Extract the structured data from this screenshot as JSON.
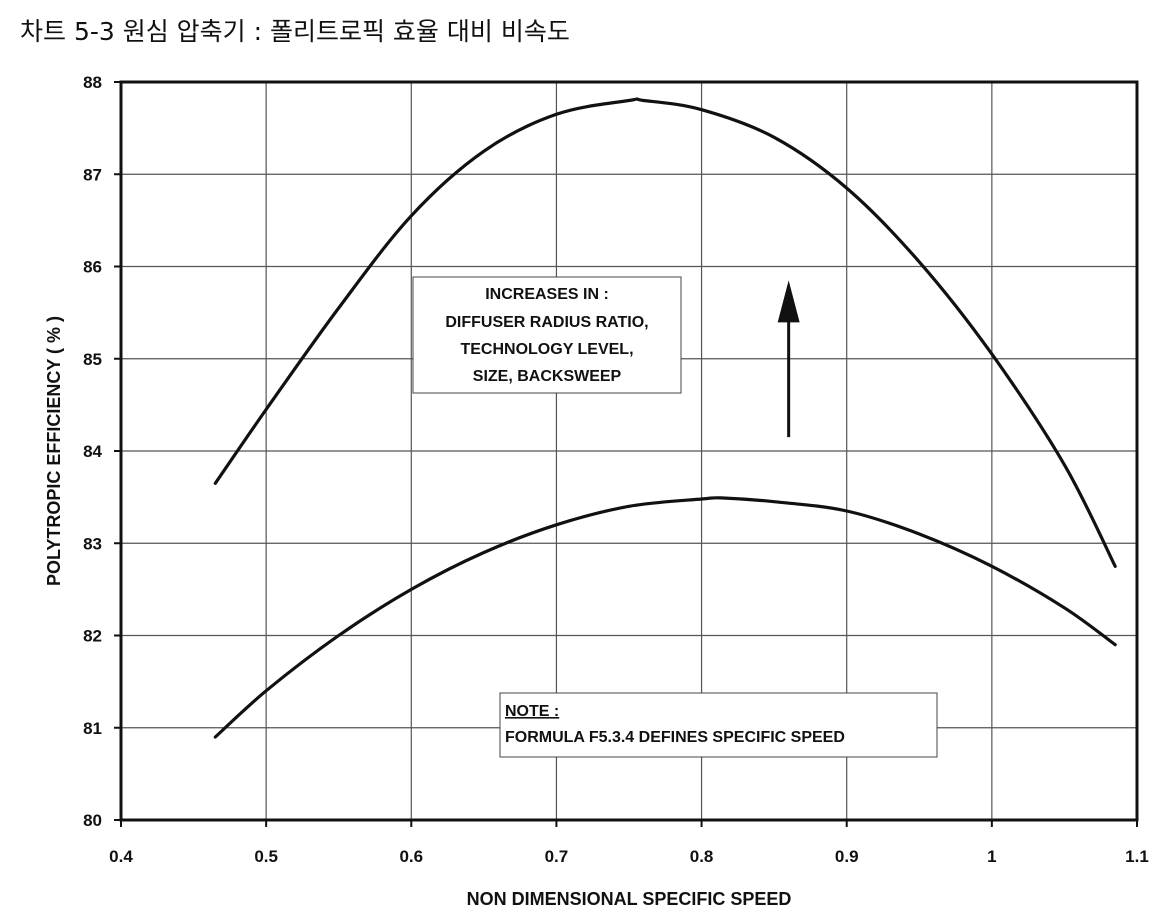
{
  "title": "차트 5-3 원심 압축기 : 폴리트로픽 효율 대비 비속도",
  "colors": {
    "ink": "#111111",
    "grid": "#555555",
    "background": "#ffffff"
  },
  "annotations": {
    "increases_box": [
      "INCREASES IN :",
      "DIFFUSER RADIUS RATIO,",
      "TECHNOLOGY LEVEL,",
      "SIZE, BACKSWEEP"
    ],
    "note_heading": "NOTE :",
    "note_body": "FORMULA F5.3.4 DEFINES SPECIFIC SPEED"
  },
  "chart_data": {
    "type": "line",
    "xlabel": "NON DIMENSIONAL SPECIFIC SPEED",
    "ylabel": "POLYTROPIC EFFICIENCY ( % )",
    "xlim": [
      0.4,
      1.1
    ],
    "ylim": [
      80,
      88
    ],
    "x_ticks": [
      0.4,
      0.5,
      0.6,
      0.7,
      0.8,
      0.9,
      1,
      1.1
    ],
    "x_tick_labels": [
      "0.4",
      "0.5",
      "0.6",
      "0.7",
      "0.8",
      "0.9",
      "1",
      "1.1"
    ],
    "y_ticks": [
      80,
      81,
      82,
      83,
      84,
      85,
      86,
      87,
      88
    ],
    "y_tick_labels": [
      "80",
      "81",
      "82",
      "83",
      "84",
      "85",
      "86",
      "87",
      "88"
    ],
    "grid": true,
    "arrow": {
      "x": 0.86,
      "y_from": 84.15,
      "y_to": 85.85,
      "direction": "up"
    },
    "series": [
      {
        "x": [
          0.465,
          0.5,
          0.55,
          0.6,
          0.65,
          0.7,
          0.75,
          0.76,
          0.8,
          0.85,
          0.9,
          0.95,
          1.0,
          1.05,
          1.085
        ],
        "values": [
          83.65,
          84.45,
          85.55,
          86.55,
          87.25,
          87.65,
          87.8,
          87.8,
          87.7,
          87.4,
          86.85,
          86.05,
          85.05,
          83.85,
          82.75
        ]
      },
      {
        "x": [
          0.465,
          0.5,
          0.55,
          0.6,
          0.65,
          0.7,
          0.75,
          0.8,
          0.815,
          0.85,
          0.9,
          0.95,
          1.0,
          1.05,
          1.085
        ],
        "values": [
          80.9,
          81.4,
          82.0,
          82.5,
          82.9,
          83.2,
          83.4,
          83.48,
          83.49,
          83.45,
          83.35,
          83.1,
          82.75,
          82.3,
          81.9
        ]
      }
    ]
  }
}
